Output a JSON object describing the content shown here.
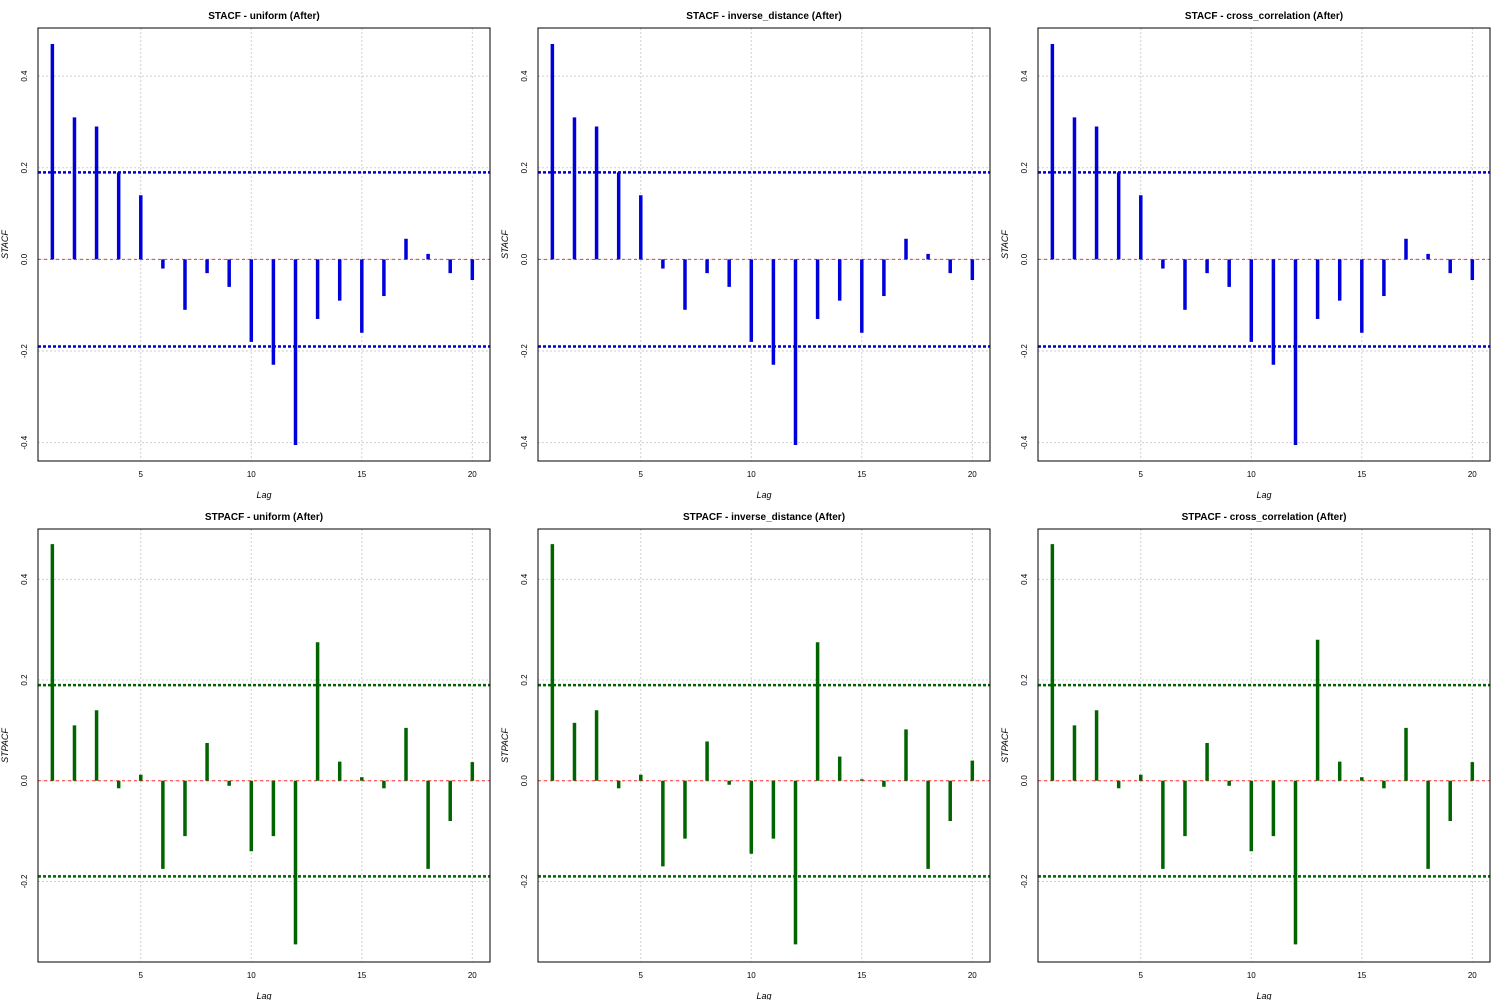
{
  "chart_data": [
    {
      "type": "bar",
      "title": "STACF - uniform (After)",
      "xlabel": "Lag",
      "ylabel": "STACF",
      "x": [
        1,
        2,
        3,
        4,
        5,
        6,
        7,
        8,
        9,
        10,
        11,
        12,
        13,
        14,
        15,
        16,
        17,
        18,
        19,
        20
      ],
      "values": [
        0.47,
        0.31,
        0.29,
        0.19,
        0.14,
        -0.02,
        -0.11,
        -0.03,
        -0.06,
        -0.18,
        -0.23,
        -0.405,
        -0.13,
        -0.09,
        -0.16,
        -0.08,
        0.045,
        0.012,
        -0.03,
        -0.045
      ],
      "confidence_bound": 0.19,
      "xlim": [
        0.35,
        20.8
      ],
      "ylim": [
        -0.44,
        0.505
      ],
      "xticks": [
        5,
        10,
        15,
        20
      ],
      "yticks": [
        -0.4,
        -0.2,
        0.0,
        0.2,
        0.4
      ],
      "ytick_labels": [
        "-0.4",
        "-0.2",
        "0.0",
        "0.2",
        "0.4"
      ],
      "bar_color": "#0000dd",
      "bound_color": "#0000cc",
      "zero_color": "#ff3333",
      "grid": true
    },
    {
      "type": "bar",
      "title": "STACF - inverse_distance (After)",
      "xlabel": "Lag",
      "ylabel": "STACF",
      "x": [
        1,
        2,
        3,
        4,
        5,
        6,
        7,
        8,
        9,
        10,
        11,
        12,
        13,
        14,
        15,
        16,
        17,
        18,
        19,
        20
      ],
      "values": [
        0.47,
        0.31,
        0.29,
        0.19,
        0.14,
        -0.02,
        -0.11,
        -0.03,
        -0.06,
        -0.18,
        -0.23,
        -0.405,
        -0.13,
        -0.09,
        -0.16,
        -0.08,
        0.045,
        0.012,
        -0.03,
        -0.045
      ],
      "confidence_bound": 0.19,
      "xlim": [
        0.35,
        20.8
      ],
      "ylim": [
        -0.44,
        0.505
      ],
      "xticks": [
        5,
        10,
        15,
        20
      ],
      "yticks": [
        -0.4,
        -0.2,
        0.0,
        0.2,
        0.4
      ],
      "ytick_labels": [
        "-0.4",
        "-0.2",
        "0.0",
        "0.2",
        "0.4"
      ],
      "bar_color": "#0000dd",
      "bound_color": "#0000cc",
      "zero_color": "#ff3333",
      "grid": true
    },
    {
      "type": "bar",
      "title": "STACF - cross_correlation (After)",
      "xlabel": "Lag",
      "ylabel": "STACF",
      "x": [
        1,
        2,
        3,
        4,
        5,
        6,
        7,
        8,
        9,
        10,
        11,
        12,
        13,
        14,
        15,
        16,
        17,
        18,
        19,
        20
      ],
      "values": [
        0.47,
        0.31,
        0.29,
        0.19,
        0.14,
        -0.02,
        -0.11,
        -0.03,
        -0.06,
        -0.18,
        -0.23,
        -0.405,
        -0.13,
        -0.09,
        -0.16,
        -0.08,
        0.045,
        0.012,
        -0.03,
        -0.045
      ],
      "confidence_bound": 0.19,
      "xlim": [
        0.35,
        20.8
      ],
      "ylim": [
        -0.44,
        0.505
      ],
      "xticks": [
        5,
        10,
        15,
        20
      ],
      "yticks": [
        -0.4,
        -0.2,
        0.0,
        0.2,
        0.4
      ],
      "ytick_labels": [
        "-0.4",
        "-0.2",
        "0.0",
        "0.2",
        "0.4"
      ],
      "bar_color": "#0000dd",
      "bound_color": "#0000cc",
      "zero_color": "#ff3333",
      "grid": true
    },
    {
      "type": "bar",
      "title": "STPACF - uniform (After)",
      "xlabel": "Lag",
      "ylabel": "STPACF",
      "x": [
        1,
        2,
        3,
        4,
        5,
        6,
        7,
        8,
        9,
        10,
        11,
        12,
        13,
        14,
        15,
        16,
        17,
        18,
        19,
        20
      ],
      "values": [
        0.47,
        0.11,
        0.14,
        -0.015,
        0.012,
        -0.175,
        -0.11,
        0.075,
        -0.01,
        -0.14,
        -0.11,
        -0.325,
        0.275,
        0.038,
        0.007,
        -0.015,
        0.105,
        -0.175,
        -0.08,
        0.037
      ],
      "confidence_bound": 0.19,
      "xlim": [
        0.35,
        20.8
      ],
      "ylim": [
        -0.36,
        0.5
      ],
      "xticks": [
        5,
        10,
        15,
        20
      ],
      "yticks": [
        -0.2,
        0.0,
        0.2,
        0.4
      ],
      "ytick_labels": [
        "-0.2",
        "0.0",
        "0.2",
        "0.4"
      ],
      "bar_color": "#006400",
      "bound_color": "#006400",
      "zero_color": "#ff3333",
      "grid": true
    },
    {
      "type": "bar",
      "title": "STPACF - inverse_distance (After)",
      "xlabel": "Lag",
      "ylabel": "STPACF",
      "x": [
        1,
        2,
        3,
        4,
        5,
        6,
        7,
        8,
        9,
        10,
        11,
        12,
        13,
        14,
        15,
        16,
        17,
        18,
        19,
        20
      ],
      "values": [
        0.47,
        0.115,
        0.14,
        -0.015,
        0.012,
        -0.17,
        -0.115,
        0.078,
        -0.008,
        -0.145,
        -0.115,
        -0.325,
        0.275,
        0.048,
        0.003,
        -0.012,
        0.102,
        -0.175,
        -0.08,
        0.04
      ],
      "confidence_bound": 0.19,
      "xlim": [
        0.35,
        20.8
      ],
      "ylim": [
        -0.36,
        0.5
      ],
      "xticks": [
        5,
        10,
        15,
        20
      ],
      "yticks": [
        -0.2,
        0.0,
        0.2,
        0.4
      ],
      "ytick_labels": [
        "-0.2",
        "0.0",
        "0.2",
        "0.4"
      ],
      "bar_color": "#006400",
      "bound_color": "#006400",
      "zero_color": "#ff3333",
      "grid": true
    },
    {
      "type": "bar",
      "title": "STPACF - cross_correlation (After)",
      "xlabel": "Lag",
      "ylabel": "STPACF",
      "x": [
        1,
        2,
        3,
        4,
        5,
        6,
        7,
        8,
        9,
        10,
        11,
        12,
        13,
        14,
        15,
        16,
        17,
        18,
        19,
        20
      ],
      "values": [
        0.47,
        0.11,
        0.14,
        -0.015,
        0.012,
        -0.175,
        -0.11,
        0.075,
        -0.01,
        -0.14,
        -0.11,
        -0.325,
        0.28,
        0.038,
        0.007,
        -0.015,
        0.105,
        -0.175,
        -0.08,
        0.037
      ],
      "confidence_bound": 0.19,
      "xlim": [
        0.35,
        20.8
      ],
      "ylim": [
        -0.36,
        0.5
      ],
      "xticks": [
        5,
        10,
        15,
        20
      ],
      "yticks": [
        -0.2,
        0.0,
        0.2,
        0.4
      ],
      "ytick_labels": [
        "-0.2",
        "0.0",
        "0.2",
        "0.4"
      ],
      "bar_color": "#006400",
      "bound_color": "#006400",
      "zero_color": "#ff3333",
      "grid": true
    }
  ]
}
